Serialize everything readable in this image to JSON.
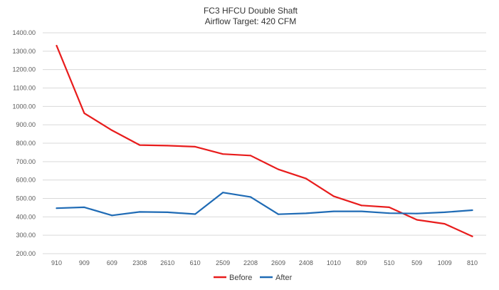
{
  "chart_data": {
    "type": "line",
    "title": "FC3 HFCU Double Shaft",
    "subtitle": "Airflow Target: 420 CFM",
    "xlabel": "",
    "ylabel": "",
    "ylim": [
      200,
      1400
    ],
    "yticks": [
      "200.00",
      "300.00",
      "400.00",
      "500.00",
      "600.00",
      "700.00",
      "800.00",
      "900.00",
      "1000.00",
      "1100.00",
      "1200.00",
      "1300.00",
      "1400.00"
    ],
    "grid": true,
    "legend": "bottom",
    "categories": [
      "910",
      "909",
      "609",
      "2308",
      "2610",
      "610",
      "2509",
      "2208",
      "2609",
      "2408",
      "1010",
      "809",
      "510",
      "509",
      "1009",
      "810"
    ],
    "series": [
      {
        "name": "Before",
        "color": "#e81c1c",
        "values": [
          1330,
          963,
          870,
          790,
          787,
          781,
          741,
          733,
          658,
          608,
          512,
          462,
          452,
          384,
          362,
          294
        ]
      },
      {
        "name": "After",
        "color": "#1f6bb5",
        "values": [
          447,
          452,
          408,
          427,
          425,
          415,
          532,
          508,
          414,
          419,
          430,
          430,
          420,
          418,
          425,
          436
        ]
      }
    ]
  }
}
